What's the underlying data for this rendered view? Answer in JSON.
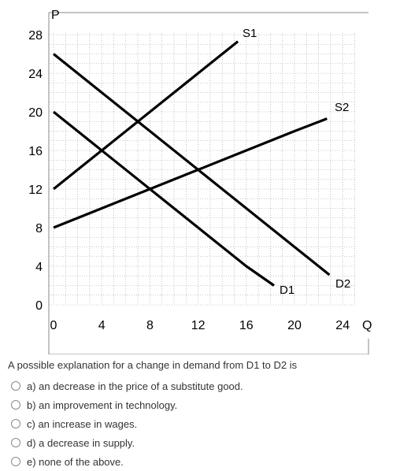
{
  "graph": {
    "axis_label_price": "P",
    "axis_label_quantity": "Q",
    "x_ticks": [
      "0",
      "4",
      "8",
      "12",
      "16",
      "20",
      "24"
    ],
    "y_ticks": [
      "0",
      "4",
      "8",
      "12",
      "16",
      "20",
      "24",
      "28"
    ],
    "curve_labels": {
      "S1": "S1",
      "S2": "S2",
      "D1": "D1",
      "D2": "D2"
    },
    "line_color": "#000000"
  },
  "chart_data": {
    "type": "line",
    "title": "",
    "xlabel": "Q",
    "ylabel": "P",
    "xlim": [
      0,
      26
    ],
    "ylim": [
      0,
      28
    ],
    "grid": true,
    "series": [
      {
        "name": "S1",
        "x": [
          0,
          15.3
        ],
        "y": [
          12,
          27.3
        ]
      },
      {
        "name": "S2",
        "x": [
          0,
          4,
          8,
          12,
          16,
          20,
          22.7
        ],
        "y": [
          8,
          10,
          12,
          14,
          16,
          18,
          19.3
        ]
      },
      {
        "name": "D1",
        "x": [
          0,
          8,
          16,
          18.3
        ],
        "y": [
          20,
          12,
          4,
          2
        ]
      },
      {
        "name": "D2",
        "x": [
          0,
          8,
          12,
          16,
          20,
          22.9
        ],
        "y": [
          26,
          18,
          14,
          10,
          6,
          3.1
        ]
      }
    ]
  },
  "question": {
    "text": "A possible explanation for a change in demand from D1 to D2 is",
    "options": [
      "a) an decrease in the price of a substitute good.",
      "b) an improvement in technology.",
      "c) an increase in wages.",
      "d) a decrease in supply.",
      "e) none of the above."
    ]
  }
}
